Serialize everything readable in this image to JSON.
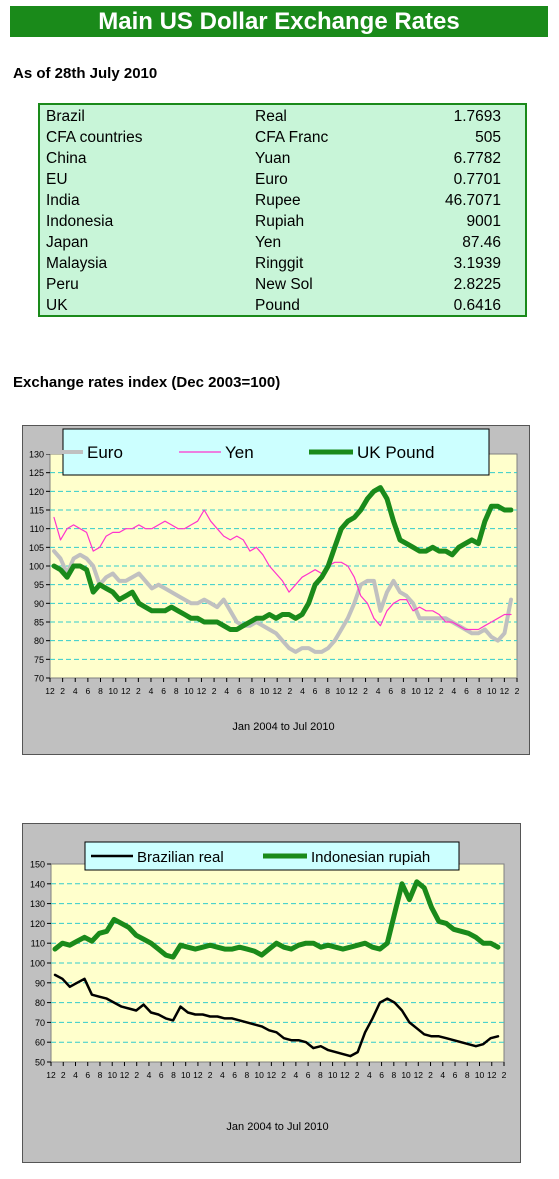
{
  "page": {
    "title": "Main US Dollar Exchange Rates",
    "as_of": "As of 28th July 2010",
    "index_heading": "Exchange rates index (Dec 2003=100)"
  },
  "rates": [
    {
      "country": "Brazil",
      "currency": "Real",
      "rate": "1.7693"
    },
    {
      "country": "CFA countries",
      "currency": "CFA Franc",
      "rate": "505"
    },
    {
      "country": "China",
      "currency": "Yuan",
      "rate": "6.7782"
    },
    {
      "country": "EU",
      "currency": "Euro",
      "rate": "0.7701"
    },
    {
      "country": "India",
      "currency": "Rupee",
      "rate": "46.7071"
    },
    {
      "country": "Indonesia",
      "currency": "Rupiah",
      "rate": "9001"
    },
    {
      "country": "Japan",
      "currency": "Yen",
      "rate": "87.46"
    },
    {
      "country": "Malaysia",
      "currency": "Ringgit",
      "rate": "3.1939"
    },
    {
      "country": "Peru",
      "currency": "New Sol",
      "rate": "2.8225"
    },
    {
      "country": "UK",
      "currency": "Pound",
      "rate": "0.6416"
    }
  ],
  "chart_data": [
    {
      "type": "line",
      "xlabel": "Jan 2004 to Jul 2010",
      "ylim": [
        70,
        130
      ],
      "yticks": [
        70,
        75,
        80,
        85,
        90,
        95,
        100,
        105,
        110,
        115,
        120,
        125,
        130
      ],
      "xtick_labels": [
        "12",
        "2",
        "4",
        "6",
        "8",
        "10",
        "12",
        "2",
        "4",
        "6",
        "8",
        "10",
        "12",
        "2",
        "4",
        "6",
        "8",
        "10",
        "12",
        "2",
        "4",
        "6",
        "8",
        "10",
        "12",
        "2",
        "4",
        "6",
        "8",
        "10",
        "12",
        "2",
        "4",
        "6",
        "8",
        "10",
        "12",
        "2"
      ],
      "x_start": "2003-12",
      "x_end": "2010-03",
      "grid": true,
      "legend_position": "top",
      "colors": {
        "plot_bg": "#ffffcc",
        "grid": "#33cccc",
        "panel": "#c0c0c0",
        "legend_bg": "#ccffff"
      },
      "series": [
        {
          "name": "Euro",
          "color": "#c0c0c0",
          "values": [
            104,
            102,
            98,
            102,
            103,
            102,
            100,
            95,
            97,
            98,
            96,
            96,
            97,
            98,
            96,
            94,
            95,
            94,
            93,
            92,
            91,
            90,
            90,
            91,
            90,
            89,
            91,
            88,
            85,
            84,
            84,
            85,
            84,
            83,
            82,
            80,
            78,
            77,
            78,
            78,
            77,
            77,
            78,
            80,
            83,
            86,
            90,
            95,
            96,
            96,
            88,
            93,
            96,
            93,
            92,
            90,
            86,
            86,
            86,
            86,
            86,
            85,
            84,
            83,
            82,
            82,
            83,
            81,
            80,
            82,
            91
          ]
        },
        {
          "name": "Yen",
          "color": "#ff33cc",
          "values": [
            113,
            107,
            110,
            111,
            110,
            109,
            104,
            105,
            108,
            109,
            109,
            110,
            110,
            111,
            110,
            110,
            111,
            112,
            111,
            110,
            110,
            111,
            112,
            115,
            112,
            110,
            108,
            107,
            108,
            107,
            104,
            105,
            103,
            100,
            98,
            96,
            93,
            95,
            97,
            98,
            99,
            98,
            100,
            101,
            101,
            100,
            97,
            92,
            90,
            86,
            84,
            88,
            90,
            91,
            91,
            88,
            89,
            88,
            88,
            87,
            85,
            85,
            84,
            83,
            83,
            83,
            84,
            85,
            86,
            87,
            87
          ]
        },
        {
          "name": "UK Pound",
          "color": "#1a8a1a",
          "values": [
            100,
            99,
            97,
            100,
            100,
            99,
            93,
            95,
            94,
            93,
            91,
            92,
            93,
            90,
            89,
            88,
            88,
            88,
            89,
            88,
            87,
            86,
            86,
            85,
            85,
            85,
            84,
            83,
            83,
            84,
            85,
            86,
            86,
            87,
            86,
            87,
            87,
            86,
            87,
            90,
            95,
            97,
            100,
            105,
            110,
            112,
            113,
            115,
            118,
            120,
            121,
            118,
            112,
            107,
            106,
            105,
            104,
            104,
            105,
            104,
            104,
            103,
            105,
            106,
            107,
            106,
            112,
            116,
            116,
            115,
            115
          ]
        }
      ]
    },
    {
      "type": "line",
      "xlabel": "Jan 2004 to Jul 2010",
      "ylim": [
        50,
        150
      ],
      "yticks": [
        50,
        60,
        70,
        80,
        90,
        100,
        110,
        120,
        130,
        140,
        150
      ],
      "xtick_labels": [
        "12",
        "2",
        "4",
        "6",
        "8",
        "10",
        "12",
        "2",
        "4",
        "6",
        "8",
        "10",
        "12",
        "2",
        "4",
        "6",
        "8",
        "10",
        "12",
        "2",
        "4",
        "6",
        "8",
        "10",
        "12",
        "2",
        "4",
        "6",
        "8",
        "10",
        "12",
        "2",
        "4",
        "6",
        "8",
        "10",
        "12",
        "2"
      ],
      "x_start": "2003-12",
      "x_end": "2010-03",
      "grid": true,
      "legend_position": "top",
      "colors": {
        "plot_bg": "#ffffcc",
        "grid": "#33cccc",
        "panel": "#c0c0c0",
        "legend_bg": "#ccffff"
      },
      "series": [
        {
          "name": "Brazilian real",
          "color": "#000000",
          "values": [
            94,
            92,
            88,
            90,
            92,
            84,
            83,
            82,
            80,
            78,
            77,
            76,
            79,
            75,
            74,
            72,
            71,
            78,
            75,
            74,
            74,
            73,
            73,
            72,
            72,
            71,
            70,
            69,
            68,
            66,
            65,
            62,
            61,
            61,
            60,
            57,
            58,
            56,
            55,
            54,
            53,
            55,
            65,
            72,
            80,
            82,
            80,
            76,
            70,
            67,
            64,
            63,
            63,
            62,
            61,
            60,
            59,
            58,
            59,
            62,
            63
          ]
        },
        {
          "name": "Indonesian rupiah",
          "color": "#1a8a1a",
          "values": [
            107,
            110,
            109,
            111,
            113,
            111,
            115,
            116,
            122,
            120,
            118,
            114,
            112,
            110,
            107,
            104,
            103,
            109,
            108,
            107,
            108,
            109,
            108,
            107,
            107,
            108,
            107,
            106,
            104,
            107,
            110,
            108,
            107,
            109,
            110,
            110,
            108,
            109,
            108,
            107,
            108,
            109,
            110,
            108,
            107,
            110,
            125,
            140,
            132,
            141,
            138,
            128,
            121,
            120,
            117,
            116,
            115,
            113,
            110,
            110,
            108
          ]
        }
      ]
    }
  ]
}
